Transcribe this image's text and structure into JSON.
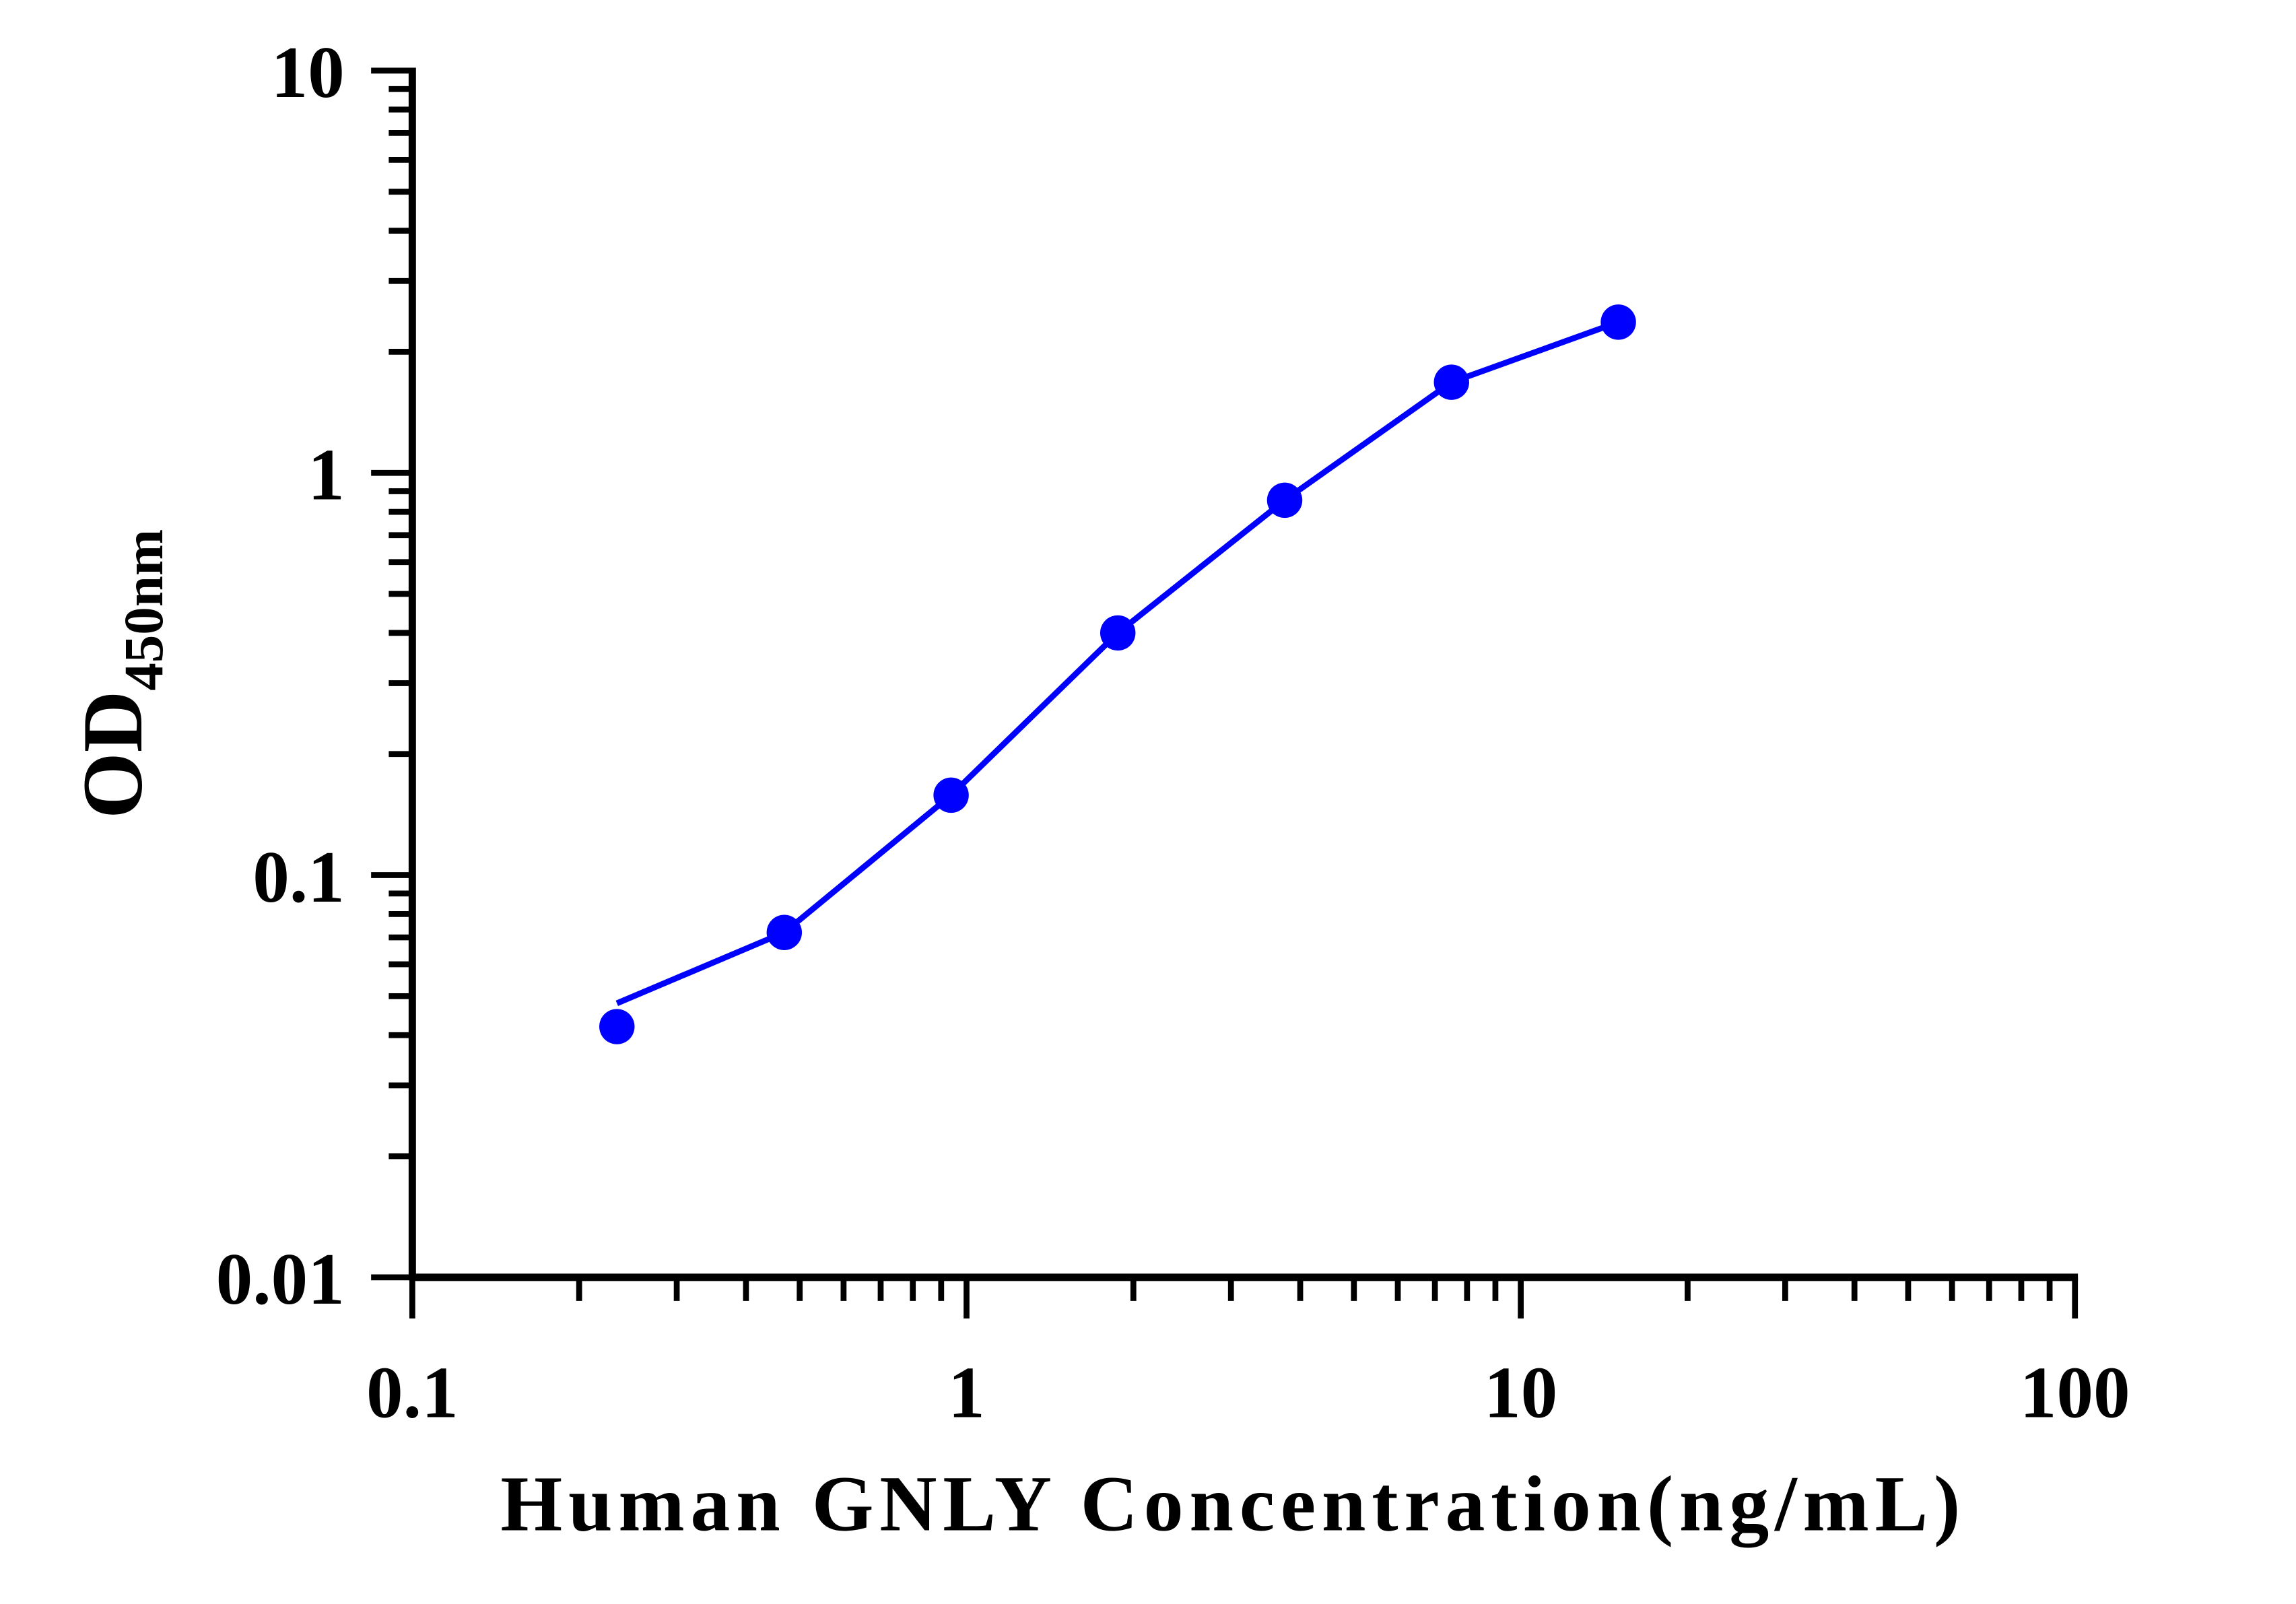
{
  "chart_data": {
    "type": "line",
    "xlabel": "Human GNLY Concentration(ng/mL)",
    "ylabel_main": "OD",
    "ylabel_sub": "450nm",
    "x_scale": "log",
    "y_scale": "log",
    "xlim": [
      0.1,
      100
    ],
    "ylim": [
      0.01,
      10
    ],
    "x_ticks": [
      "0.1",
      "1",
      "10",
      "100"
    ],
    "y_ticks": [
      "0.01",
      "0.1",
      "1",
      "10"
    ],
    "grid": false,
    "legend": "none",
    "color": "#0000ff",
    "series": [
      {
        "x": [
          0.234,
          0.469,
          0.938,
          1.875,
          3.75,
          7.5,
          15
        ],
        "y": [
          0.042,
          0.072,
          0.158,
          0.4,
          0.855,
          1.68,
          2.37
        ]
      }
    ],
    "fit_curve": {
      "x": [
        0.234,
        0.469,
        0.938,
        1.875,
        3.75,
        7.5,
        15
      ],
      "y": [
        0.048,
        0.072,
        0.158,
        0.4,
        0.855,
        1.68,
        2.37
      ]
    }
  }
}
